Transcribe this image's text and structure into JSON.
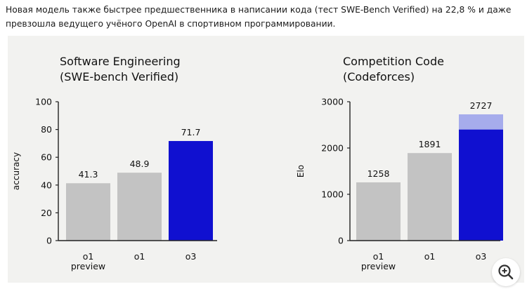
{
  "article": {
    "text": "Новая модель также быстрее предшественника в написании кода (тест SWE-Bench Verified) на 22,8 % и даже превзошла ведущего учёного OpenAI в спортивном программировании."
  },
  "colors": {
    "figure_bg": "#f2f2f0",
    "gray_bar": "#c3c3c3",
    "o3_bar": "#1010d0",
    "o3_extra": "#a6acec",
    "axis": "#222222"
  },
  "chart_data": [
    {
      "type": "bar",
      "title_line1": "Software Engineering",
      "title_line2": "(SWE-bench Verified)",
      "xlabel": "",
      "ylabel": "accuracy",
      "ylim": [
        0,
        100
      ],
      "yticks": [
        0,
        20,
        40,
        60,
        80,
        100
      ],
      "categories": [
        [
          "o1",
          "preview"
        ],
        [
          "o1"
        ],
        [
          "o3"
        ]
      ],
      "values": [
        41.3,
        48.9,
        71.7
      ],
      "labels": [
        "41.3",
        "48.9",
        "71.7"
      ],
      "grid": false
    },
    {
      "type": "bar",
      "title_line1": "Competition Code",
      "title_line2": "(Codeforces)",
      "xlabel": "",
      "ylabel": "Elo",
      "ylim": [
        0,
        3000
      ],
      "yticks": [
        0,
        1000,
        2000,
        3000
      ],
      "categories": [
        [
          "o1",
          "preview"
        ],
        [
          "o1"
        ],
        [
          "o3"
        ]
      ],
      "values": [
        1258,
        1891,
        2727
      ],
      "stacked_base_o3": 2400,
      "labels": [
        "1258",
        "1891",
        "2727"
      ],
      "grid": false
    }
  ],
  "zoom_icon": "zoom-in-icon"
}
